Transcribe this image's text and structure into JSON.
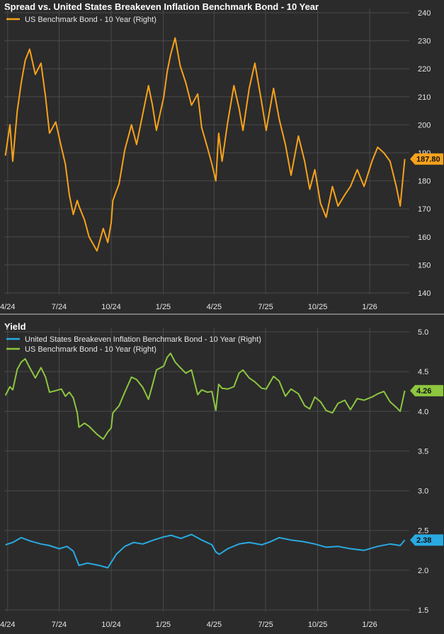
{
  "chart_data": [
    {
      "type": "line",
      "title": "Spread vs. United States Breakeven Inflation Benchmark Bond - 10 Year",
      "x_tick_labels": [
        "4/24",
        "7/24",
        "10/24",
        "1/25",
        "4/25",
        "7/25",
        "10/25",
        "1/26"
      ],
      "y_ticks": [
        "140",
        "150",
        "160",
        "170",
        "180",
        "190",
        "200",
        "210",
        "220",
        "230",
        "240"
      ],
      "ylim": [
        140,
        240
      ],
      "y_axis_side": "right",
      "grid": true,
      "legend_placement": "top-left",
      "last_value_label": "187.80",
      "series": [
        {
          "name": "US Benchmark Bond - 10 Year (Right)",
          "color": "#f7a21b",
          "x": [
            "2024-03-28",
            "2024-04-05",
            "2024-04-10",
            "2024-04-18",
            "2024-04-25",
            "2024-05-02",
            "2024-05-10",
            "2024-05-20",
            "2024-05-30",
            "2024-06-07",
            "2024-06-14",
            "2024-06-25",
            "2024-07-05",
            "2024-07-12",
            "2024-07-19",
            "2024-07-26",
            "2024-08-02",
            "2024-08-05",
            "2024-08-15",
            "2024-08-23",
            "2024-09-06",
            "2024-09-17",
            "2024-09-25",
            "2024-10-01",
            "2024-10-04",
            "2024-10-15",
            "2024-10-25",
            "2024-11-06",
            "2024-11-15",
            "2024-11-26",
            "2024-12-06",
            "2024-12-13",
            "2024-12-20",
            "2025-01-02",
            "2025-01-08",
            "2025-01-14",
            "2025-01-22",
            "2025-01-31",
            "2025-02-10",
            "2025-02-20",
            "2025-03-03",
            "2025-03-10",
            "2025-03-20",
            "2025-03-28",
            "2025-04-04",
            "2025-04-09",
            "2025-04-15",
            "2025-04-25",
            "2025-05-06",
            "2025-05-15",
            "2025-05-22",
            "2025-06-02",
            "2025-06-12",
            "2025-06-24",
            "2025-07-02",
            "2025-07-15",
            "2025-07-25",
            "2025-08-05",
            "2025-08-15",
            "2025-08-28",
            "2025-09-08",
            "2025-09-17",
            "2025-09-26",
            "2025-10-06",
            "2025-10-16",
            "2025-10-27",
            "2025-11-06",
            "2025-11-18",
            "2025-11-28",
            "2025-12-10",
            "2025-12-22",
            "2026-01-05",
            "2026-01-15",
            "2026-01-26",
            "2026-02-06",
            "2026-02-17",
            "2026-02-24",
            "2026-03-04"
          ],
          "values": [
            189,
            200,
            187,
            205,
            215,
            223,
            227,
            218,
            222,
            210,
            197,
            201,
            192,
            186,
            175,
            168,
            173,
            171,
            166,
            160,
            155,
            163,
            158,
            165,
            173,
            179,
            191,
            200,
            193,
            204,
            214,
            207,
            198,
            210,
            219,
            225,
            231,
            221,
            215,
            207,
            211,
            199,
            192,
            186,
            180,
            197,
            187,
            201,
            214,
            206,
            198,
            213,
            222,
            208,
            198,
            213,
            202,
            193,
            182,
            196,
            187,
            177,
            184,
            172,
            167,
            178,
            171,
            175,
            178,
            184,
            178,
            187,
            192,
            190,
            187,
            178,
            171,
            187.8
          ]
        }
      ]
    },
    {
      "type": "line",
      "title": "Yield",
      "x_tick_labels": [
        "4/24",
        "7/24",
        "10/24",
        "1/25",
        "4/25",
        "7/25",
        "10/25",
        "1/26"
      ],
      "y_ticks": [
        "1.5",
        "2.0",
        "2.5",
        "3.0",
        "3.5",
        "4.0",
        "4.5",
        "5.0"
      ],
      "ylim": [
        1.5,
        5.0
      ],
      "y_axis_side": "right",
      "grid": true,
      "legend_placement": "top-left",
      "series": [
        {
          "name": "United States Breakeven Inflation Benchmark Bond - 10 Year (Right)",
          "color": "#29aae1",
          "last_value_label": "2.38",
          "x": [
            "2024-03-28",
            "2024-04-10",
            "2024-04-25",
            "2024-05-10",
            "2024-05-30",
            "2024-06-14",
            "2024-07-01",
            "2024-07-15",
            "2024-07-26",
            "2024-08-05",
            "2024-08-20",
            "2024-09-10",
            "2024-09-25",
            "2024-10-10",
            "2024-10-25",
            "2024-11-10",
            "2024-11-26",
            "2024-12-15",
            "2025-01-02",
            "2025-01-15",
            "2025-02-01",
            "2025-02-20",
            "2025-03-10",
            "2025-03-28",
            "2025-04-04",
            "2025-04-10",
            "2025-04-25",
            "2025-05-15",
            "2025-06-02",
            "2025-06-24",
            "2025-07-10",
            "2025-07-25",
            "2025-08-15",
            "2025-09-05",
            "2025-09-26",
            "2025-10-16",
            "2025-11-06",
            "2025-11-28",
            "2025-12-22",
            "2026-01-15",
            "2026-02-06",
            "2026-02-24",
            "2026-03-04"
          ],
          "values": [
            2.32,
            2.35,
            2.41,
            2.37,
            2.33,
            2.31,
            2.27,
            2.3,
            2.24,
            2.06,
            2.09,
            2.06,
            2.03,
            2.2,
            2.3,
            2.35,
            2.33,
            2.38,
            2.42,
            2.44,
            2.4,
            2.45,
            2.38,
            2.32,
            2.23,
            2.2,
            2.27,
            2.33,
            2.35,
            2.32,
            2.36,
            2.41,
            2.38,
            2.36,
            2.33,
            2.29,
            2.3,
            2.27,
            2.25,
            2.3,
            2.33,
            2.31,
            2.38
          ]
        },
        {
          "name": "US Benchmark Bond - 10 Year (Right)",
          "color": "#8dc63f",
          "last_value_label": "4.26",
          "x": [
            "2024-03-28",
            "2024-04-05",
            "2024-04-10",
            "2024-04-18",
            "2024-04-25",
            "2024-05-02",
            "2024-05-10",
            "2024-05-20",
            "2024-05-30",
            "2024-06-07",
            "2024-06-14",
            "2024-06-25",
            "2024-07-05",
            "2024-07-12",
            "2024-07-19",
            "2024-07-26",
            "2024-08-02",
            "2024-08-05",
            "2024-08-15",
            "2024-08-23",
            "2024-09-06",
            "2024-09-17",
            "2024-09-25",
            "2024-10-01",
            "2024-10-04",
            "2024-10-15",
            "2024-10-25",
            "2024-11-06",
            "2024-11-15",
            "2024-11-26",
            "2024-12-06",
            "2024-12-13",
            "2024-12-20",
            "2025-01-02",
            "2025-01-08",
            "2025-01-14",
            "2025-01-22",
            "2025-01-31",
            "2025-02-10",
            "2025-02-20",
            "2025-03-03",
            "2025-03-10",
            "2025-03-20",
            "2025-03-28",
            "2025-04-04",
            "2025-04-09",
            "2025-04-15",
            "2025-04-25",
            "2025-05-06",
            "2025-05-15",
            "2025-05-22",
            "2025-06-02",
            "2025-06-12",
            "2025-06-24",
            "2025-07-02",
            "2025-07-15",
            "2025-07-25",
            "2025-08-05",
            "2025-08-15",
            "2025-08-28",
            "2025-09-08",
            "2025-09-17",
            "2025-09-26",
            "2025-10-06",
            "2025-10-16",
            "2025-10-27",
            "2025-11-06",
            "2025-11-18",
            "2025-11-28",
            "2025-12-10",
            "2025-12-22",
            "2026-01-05",
            "2026-01-15",
            "2026-01-26",
            "2026-02-06",
            "2026-02-17",
            "2026-02-24",
            "2026-03-04"
          ],
          "values": [
            4.2,
            4.31,
            4.27,
            4.53,
            4.62,
            4.66,
            4.55,
            4.42,
            4.55,
            4.43,
            4.24,
            4.26,
            4.28,
            4.19,
            4.24,
            4.17,
            3.98,
            3.8,
            3.85,
            3.81,
            3.71,
            3.65,
            3.74,
            3.79,
            3.98,
            4.07,
            4.24,
            4.43,
            4.4,
            4.3,
            4.15,
            4.33,
            4.52,
            4.57,
            4.68,
            4.73,
            4.62,
            4.55,
            4.48,
            4.52,
            4.21,
            4.27,
            4.24,
            4.25,
            4.01,
            4.34,
            4.29,
            4.28,
            4.31,
            4.48,
            4.52,
            4.42,
            4.37,
            4.29,
            4.28,
            4.44,
            4.38,
            4.19,
            4.28,
            4.22,
            4.07,
            4.03,
            4.18,
            4.12,
            4.01,
            3.98,
            4.1,
            4.14,
            4.02,
            4.16,
            4.14,
            4.18,
            4.22,
            4.25,
            4.12,
            4.05,
            4.0,
            4.26
          ]
        }
      ]
    }
  ]
}
